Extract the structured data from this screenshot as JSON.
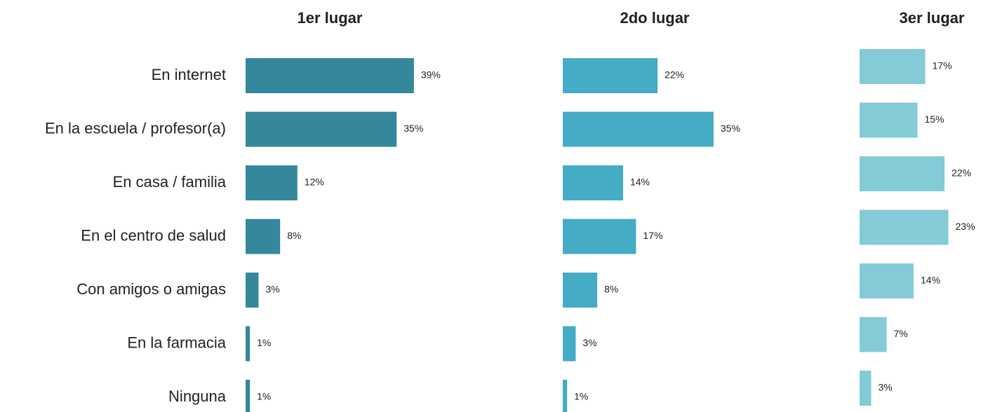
{
  "chart_data": {
    "type": "bar",
    "orientation": "horizontal",
    "categories": [
      "En internet",
      "En la escuela / profesor(a)",
      "En casa / familia",
      "En el centro de salud",
      "Con amigos o amigas",
      "En la farmacia",
      "Ninguna"
    ],
    "series": [
      {
        "name": "1er lugar",
        "color": "#35879b",
        "values": [
          39,
          35,
          12,
          8,
          3,
          1,
          1
        ],
        "value_labels": [
          "39%",
          "35%",
          "12%",
          "8%",
          "3%",
          "1%",
          "1%"
        ]
      },
      {
        "name": "2do lugar",
        "color": "#44acc4",
        "values": [
          22,
          35,
          14,
          17,
          8,
          3,
          1
        ],
        "value_labels": [
          "22%",
          "35%",
          "14%",
          "17%",
          "8%",
          "3%",
          "1%"
        ]
      },
      {
        "name": "3er lugar",
        "color": "#84cbd8",
        "values": [
          17,
          15,
          22,
          23,
          14,
          7,
          3
        ],
        "value_labels": [
          "17%",
          "15%",
          "22%",
          "23%",
          "14%",
          "7%",
          "3%"
        ]
      }
    ]
  }
}
